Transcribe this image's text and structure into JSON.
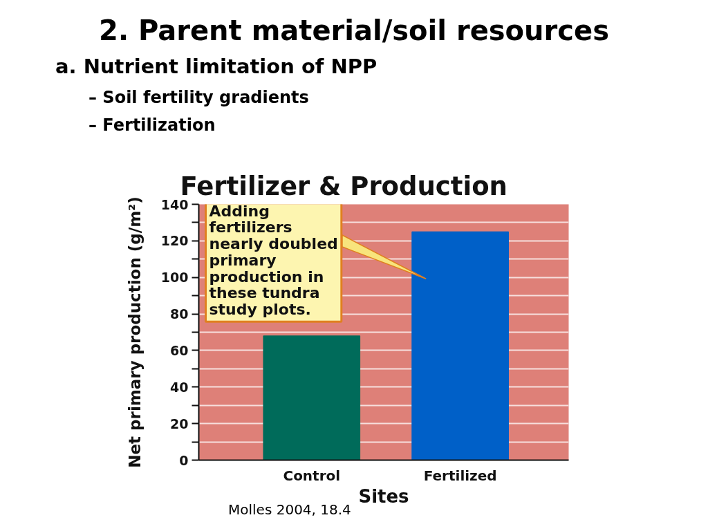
{
  "chart_data": {
    "type": "bar",
    "title": "Fertilizer & Production",
    "xlabel": "Sites",
    "ylabel": "Net primary production (g/m²)",
    "categories": [
      "Control",
      "Fertilized"
    ],
    "values": [
      68,
      125
    ],
    "colors": [
      "#006b5a",
      "#0060c8"
    ],
    "ylim": [
      0,
      140
    ],
    "yticks": [
      0,
      {
        "value": 10,
        "label": null
      },
      20,
      {
        "value": 30,
        "label": null
      },
      40,
      {
        "value": 50,
        "label": null
      },
      60,
      {
        "value": 70,
        "label": null
      },
      80,
      {
        "value": 90,
        "label": null
      },
      100,
      {
        "value": 110,
        "label": null
      },
      120,
      {
        "value": 130,
        "label": null
      },
      140
    ],
    "grid": "y",
    "annotations": [
      "2. Parent material/soil resources",
      "a. Nutrient limitation of NPP",
      "– Soil fertility gradients",
      "– Fertilization",
      "Adding fertilizers nearly doubled primary production in these tundra study plots.",
      "Molles 2004, 18.4"
    ]
  }
}
